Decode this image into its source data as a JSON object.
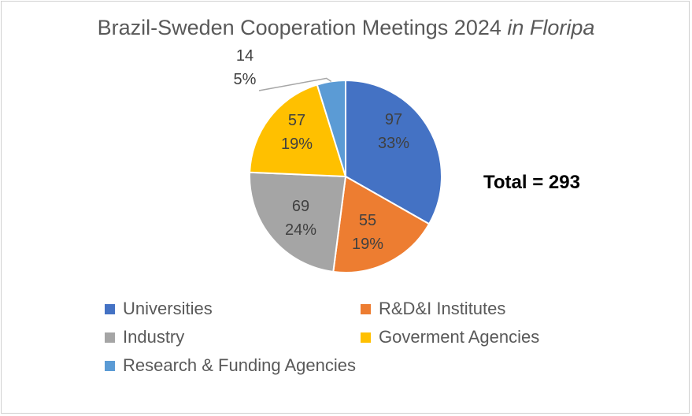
{
  "title_main": "Brazil-Sweden Cooperation Meetings 2024",
  "title_em": "in Floripa",
  "total_label": "Total = 293",
  "chart_data": {
    "type": "pie",
    "title": "Brazil-Sweden Cooperation Meetings 2024 in Floripa",
    "legend_position": "bottom",
    "slices": [
      {
        "label": "Universities",
        "value": 97,
        "percent": "33%",
        "color": "#4472C4"
      },
      {
        "label": "R&D&I Institutes",
        "value": 55,
        "percent": "19%",
        "color": "#ED7D31"
      },
      {
        "label": "Industry",
        "value": 69,
        "percent": "24%",
        "color": "#A5A5A5"
      },
      {
        "label": "Goverment Agencies",
        "value": 57,
        "percent": "19%",
        "color": "#FFC000"
      },
      {
        "label": "Research & Funding Agencies",
        "value": 14,
        "percent": "5%",
        "color": "#5B9BD5"
      }
    ]
  }
}
